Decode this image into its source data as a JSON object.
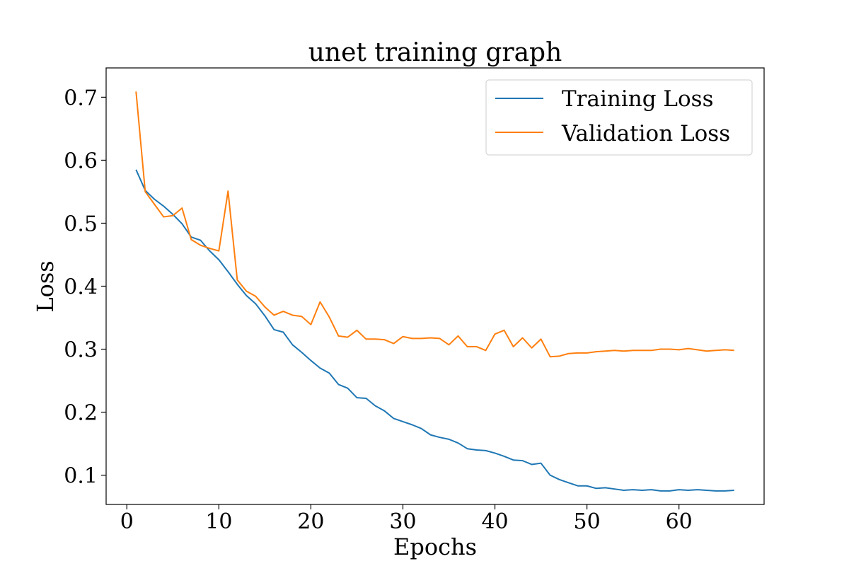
{
  "chart_data": {
    "type": "line",
    "title": "unet training graph",
    "xlabel": "Epochs",
    "ylabel": "Loss",
    "xlim": [
      -2.25,
      69.25
    ],
    "ylim": [
      0.0535,
      0.7465
    ],
    "x_ticks": [
      0,
      10,
      20,
      30,
      40,
      50,
      60
    ],
    "y_ticks": [
      0.1,
      0.2,
      0.3,
      0.4,
      0.5,
      0.6,
      0.7
    ],
    "x_tick_labels": [
      "0",
      "10",
      "20",
      "30",
      "40",
      "50",
      "60"
    ],
    "y_tick_labels": [
      "0.1",
      "0.2",
      "0.3",
      "0.4",
      "0.5",
      "0.6",
      "0.7"
    ],
    "grid": false,
    "legend_position": "top-right",
    "x": [
      1,
      2,
      3,
      4,
      5,
      6,
      7,
      8,
      9,
      10,
      11,
      12,
      13,
      14,
      15,
      16,
      17,
      18,
      19,
      20,
      21,
      22,
      23,
      24,
      25,
      26,
      27,
      28,
      29,
      30,
      31,
      32,
      33,
      34,
      35,
      36,
      37,
      38,
      39,
      40,
      41,
      42,
      43,
      44,
      45,
      46,
      47,
      48,
      49,
      50,
      51,
      52,
      53,
      54,
      55,
      56,
      57,
      58,
      59,
      60,
      61,
      62,
      63,
      64,
      65,
      66
    ],
    "series": [
      {
        "name": "Training Loss",
        "color": "#1f77b4",
        "values": [
          0.585,
          0.552,
          0.538,
          0.527,
          0.514,
          0.499,
          0.478,
          0.473,
          0.456,
          0.442,
          0.423,
          0.403,
          0.385,
          0.372,
          0.353,
          0.331,
          0.327,
          0.307,
          0.295,
          0.282,
          0.27,
          0.262,
          0.244,
          0.238,
          0.223,
          0.222,
          0.21,
          0.202,
          0.19,
          0.185,
          0.18,
          0.174,
          0.164,
          0.16,
          0.157,
          0.151,
          0.142,
          0.14,
          0.139,
          0.135,
          0.13,
          0.124,
          0.123,
          0.117,
          0.119,
          0.1,
          0.093,
          0.088,
          0.083,
          0.083,
          0.079,
          0.08,
          0.078,
          0.076,
          0.077,
          0.076,
          0.077,
          0.075,
          0.075,
          0.077,
          0.076,
          0.077,
          0.076,
          0.075,
          0.075,
          0.076
        ]
      },
      {
        "name": "Validation Loss",
        "color": "#ff7f0e",
        "values": [
          0.709,
          0.55,
          0.53,
          0.51,
          0.512,
          0.524,
          0.474,
          0.465,
          0.46,
          0.456,
          0.551,
          0.41,
          0.392,
          0.384,
          0.367,
          0.354,
          0.36,
          0.354,
          0.352,
          0.339,
          0.375,
          0.351,
          0.321,
          0.319,
          0.33,
          0.316,
          0.316,
          0.315,
          0.309,
          0.32,
          0.317,
          0.317,
          0.318,
          0.317,
          0.307,
          0.321,
          0.304,
          0.304,
          0.298,
          0.324,
          0.33,
          0.304,
          0.318,
          0.302,
          0.316,
          0.288,
          0.289,
          0.293,
          0.294,
          0.294,
          0.296,
          0.297,
          0.298,
          0.297,
          0.298,
          0.298,
          0.298,
          0.3,
          0.3,
          0.299,
          0.301,
          0.299,
          0.297,
          0.298,
          0.299,
          0.298
        ]
      }
    ]
  }
}
